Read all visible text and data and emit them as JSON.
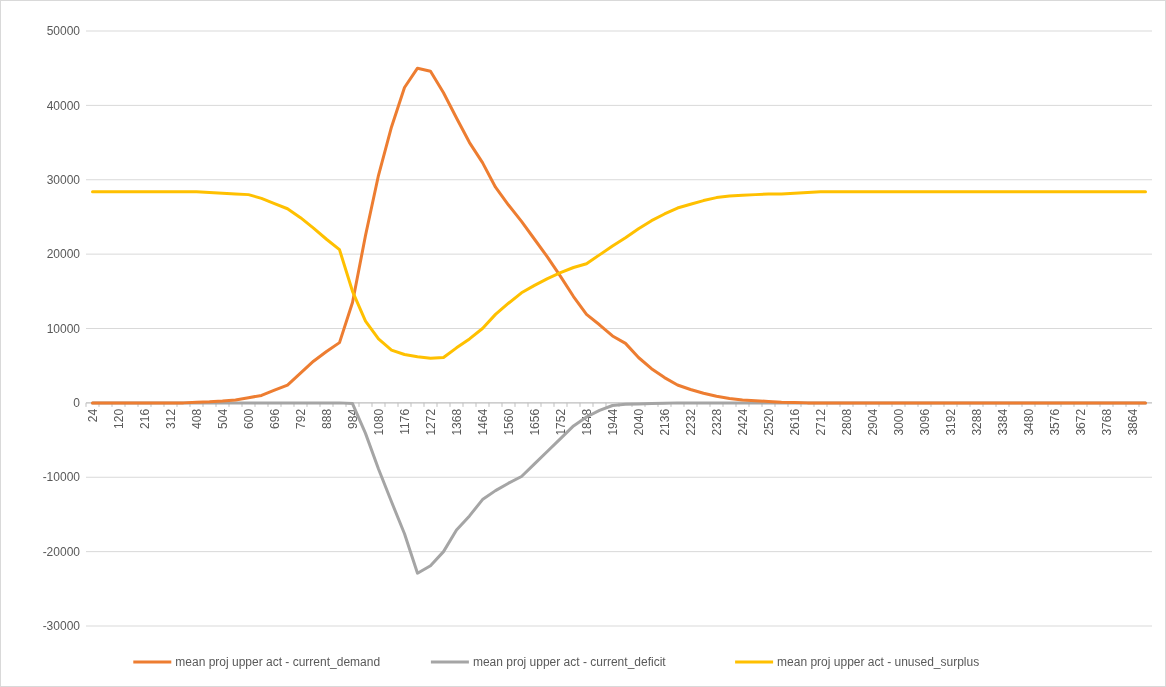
{
  "chart_data": {
    "type": "line",
    "categories": [
      "24",
      null,
      "120",
      null,
      "216",
      null,
      "312",
      null,
      "408",
      null,
      "504",
      null,
      "600",
      null,
      "696",
      null,
      "792",
      null,
      "888",
      null,
      "984",
      null,
      "1080",
      null,
      "1176",
      null,
      "1272",
      null,
      "1368",
      null,
      "1464",
      null,
      "1560",
      null,
      "1656",
      null,
      "1752",
      null,
      "1848",
      null,
      "1944",
      null,
      "2040",
      null,
      "2136",
      null,
      "2232",
      null,
      "2328",
      null,
      "2424",
      null,
      "2520",
      null,
      "2616",
      null,
      "2712",
      null,
      "2808",
      null,
      "2904",
      null,
      "3000",
      null,
      "3096",
      null,
      "3192",
      null,
      "3288",
      null,
      "3384",
      null,
      "3480",
      null,
      "3576",
      null,
      "3672",
      null,
      "3768",
      null,
      "3864",
      null
    ],
    "series": [
      {
        "name": "mean proj upper act - current_demand",
        "color": "#ed7d31",
        "values": [
          0,
          0,
          0,
          0,
          0,
          0,
          0,
          0,
          100,
          150,
          250,
          400,
          700,
          1000,
          1700,
          2400,
          4000,
          5600,
          6900,
          8100,
          13500,
          22500,
          30600,
          37100,
          42400,
          45000,
          44600,
          41700,
          38300,
          35000,
          32300,
          29000,
          26600,
          24400,
          22000,
          19600,
          17000,
          14300,
          11900,
          10500,
          9000,
          8000,
          6100,
          4600,
          3400,
          2400,
          1800,
          1300,
          900,
          600,
          400,
          300,
          200,
          100,
          50,
          0,
          0,
          0,
          0,
          0,
          0,
          0,
          0,
          0,
          0,
          0,
          0,
          0,
          0,
          0,
          0,
          0,
          0,
          0,
          0,
          0,
          0,
          0,
          0,
          0,
          0,
          0
        ]
      },
      {
        "name": "mean proj upper act - current_deficit",
        "color": "#a5a5a5",
        "values": [
          0,
          0,
          0,
          0,
          0,
          0,
          0,
          0,
          0,
          0,
          0,
          0,
          0,
          0,
          0,
          0,
          0,
          0,
          0,
          0,
          -100,
          -4100,
          -8900,
          -13300,
          -17600,
          -22900,
          -21900,
          -20000,
          -17100,
          -15200,
          -13000,
          -11800,
          -10800,
          -9900,
          -8200,
          -6500,
          -4800,
          -3100,
          -1900,
          -1000,
          -350,
          -200,
          -150,
          -100,
          -50,
          0,
          0,
          0,
          0,
          0,
          0,
          0,
          0,
          0,
          0,
          0,
          0,
          0,
          0,
          0,
          0,
          0,
          0,
          0,
          0,
          0,
          0,
          0,
          0,
          0,
          0,
          0,
          0,
          0,
          0,
          0,
          0,
          0,
          0,
          0,
          0,
          0
        ]
      },
      {
        "name": "mean proj upper act - unused_surplus",
        "color": "#ffc000",
        "values": [
          28400,
          28400,
          28400,
          28400,
          28400,
          28400,
          28400,
          28400,
          28400,
          28300,
          28200,
          28100,
          28000,
          27500,
          26800,
          26100,
          24900,
          23500,
          22000,
          20600,
          15000,
          11000,
          8600,
          7100,
          6500,
          6200,
          6000,
          6100,
          7400,
          8600,
          10000,
          11900,
          13400,
          14800,
          15800,
          16700,
          17500,
          18200,
          18700,
          19900,
          21100,
          22200,
          23400,
          24500,
          25400,
          26200,
          26700,
          27200,
          27600,
          27800,
          27900,
          28000,
          28100,
          28100,
          28200,
          28300,
          28400,
          28400,
          28400,
          28400,
          28400,
          28400,
          28400,
          28400,
          28400,
          28400,
          28400,
          28400,
          28400,
          28400,
          28400,
          28400,
          28400,
          28400,
          28400,
          28400,
          28400,
          28400,
          28400,
          28400,
          28400,
          28400
        ]
      }
    ],
    "ylim": [
      -30000,
      50000
    ],
    "yticks": [
      -30000,
      -20000,
      -10000,
      0,
      10000,
      20000,
      30000,
      40000,
      50000
    ],
    "grid": "y",
    "legend": "bottom",
    "marker": "none",
    "line_style": "solid"
  }
}
